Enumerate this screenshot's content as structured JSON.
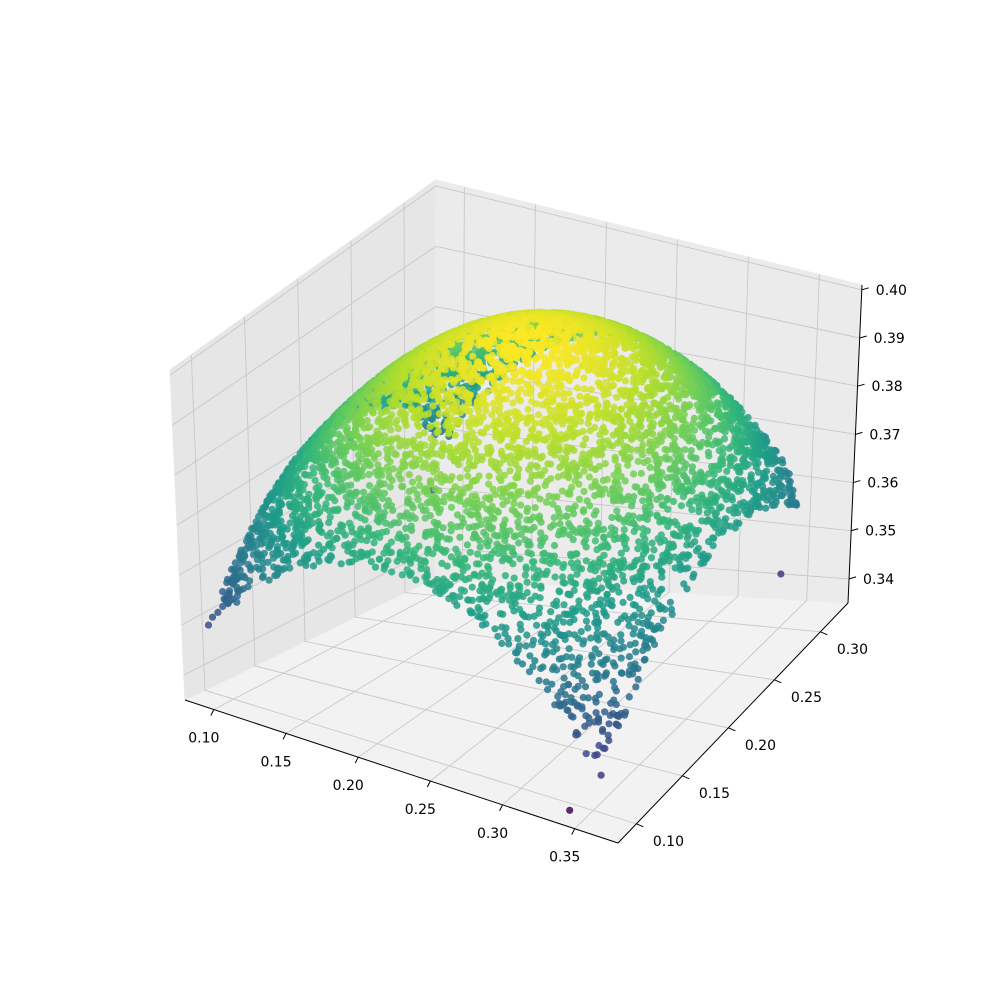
{
  "chart_data": {
    "type": "scatter",
    "projection": "3d",
    "title": "",
    "xlabel": "",
    "ylabel": "",
    "zlabel": "",
    "xlim": [
      0.08,
      0.38
    ],
    "ylim": [
      0.08,
      0.33
    ],
    "zlim": [
      0.335,
      0.401
    ],
    "grid": true,
    "colormap": "viridis",
    "color_by": "z",
    "x_ticks": [
      "0.10",
      "0.15",
      "0.20",
      "0.25",
      "0.30",
      "0.35"
    ],
    "y_ticks": [
      "0.10",
      "0.15",
      "0.20",
      "0.25",
      "0.30"
    ],
    "z_ticks": [
      "0.34",
      "0.35",
      "0.36",
      "0.37",
      "0.38",
      "0.39",
      "0.40"
    ],
    "surface": {
      "equation": "z = 0.398 - 1.45*(x-0.22)^2 - 1.45*(y-0.22)^2",
      "peak": {
        "x": 0.22,
        "y": 0.22,
        "z": 0.398
      },
      "domain": "x + y <= 0.66, x >= 0.09, y >= 0.09"
    },
    "sample_points": [
      {
        "x": 0.22,
        "y": 0.22,
        "z": 0.398
      },
      {
        "x": 0.1,
        "y": 0.3,
        "z": 0.353
      },
      {
        "x": 0.35,
        "y": 0.3,
        "z": 0.346
      },
      {
        "x": 0.33,
        "y": 0.11,
        "z": 0.363
      },
      {
        "x": 0.34,
        "y": 0.09,
        "z": 0.336
      },
      {
        "x": 0.1,
        "y": 0.22,
        "z": 0.371
      }
    ],
    "num_points": 6000
  }
}
